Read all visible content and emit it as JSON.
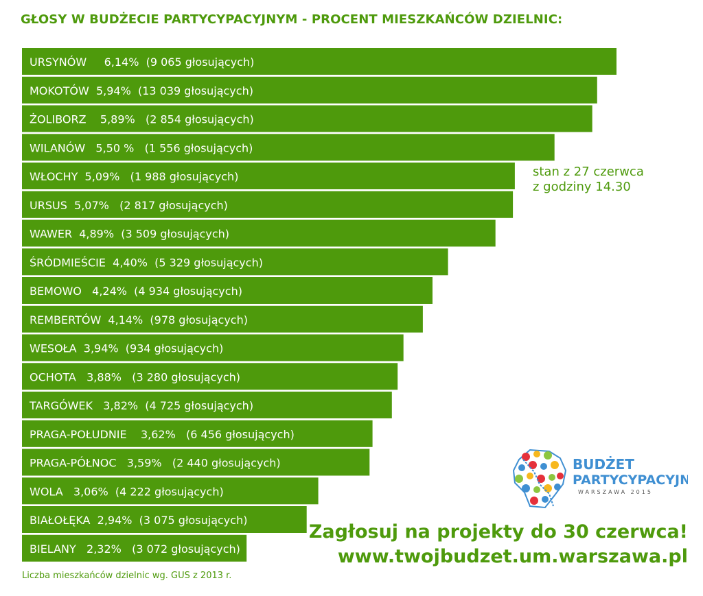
{
  "chart_data": {
    "type": "bar",
    "orientation": "horizontal",
    "title": "GŁOSY W BUDŻECIE PARTYCYPACYJNYM - PROCENT MIESZKAŃCÓW DZIELNIC:",
    "bars": [
      {
        "label": "URSYNÓW     6,14%  (9 065 głosujących)",
        "value": 6.14
      },
      {
        "label": "MOKOTÓW  5,94%  (13 039 głosujących)",
        "value": 5.94
      },
      {
        "label": "ŻOLIBORZ    5,89%   (2 854 głosujących)",
        "value": 5.89
      },
      {
        "label": "WILANÓW   5,50 %   (1 556 głosujących)",
        "value": 5.5
      },
      {
        "label": "WŁOCHY  5,09%   (1 988 głosujących)",
        "value": 5.09
      },
      {
        "label": "URSUS  5,07%   (2 817 głosujących)",
        "value": 5.07
      },
      {
        "label": "WAWER  4,89%  (3 509 głosujących)",
        "value": 4.89
      },
      {
        "label": "ŚRÓDMIEŚCIE  4,40%  (5 329 głosujących)",
        "value": 4.4
      },
      {
        "label": "BEMOWO   4,24%  (4 934 głosujących)",
        "value": 4.24
      },
      {
        "label": "REMBERTÓW  4,14%  (978 głosujących)",
        "value": 4.14
      },
      {
        "label": "WESOŁA  3,94%  (934 głosujących)",
        "value": 3.94
      },
      {
        "label": "OCHOTA   3,88%   (3 280 głosujących)",
        "value": 3.88
      },
      {
        "label": "TARGÓWEK   3,82%  (4 725 głosujących)",
        "value": 3.82
      },
      {
        "label": "PRAGA-POŁUDNIE    3,62%   (6 456 głosujących)",
        "value": 3.62
      },
      {
        "label": "PRAGA-PÓŁNOC   3,59%   (2 440 głosujących)",
        "value": 3.59
      },
      {
        "label": "WOLA   3,06%  (4 222 głosujących)",
        "value": 3.06
      },
      {
        "label": "BIAŁOŁĘKA  2,94%  (3 075 głosujących)",
        "value": 2.94
      },
      {
        "label": "BIELANY   2,32%   (3 072 głosujących)",
        "value": 2.32
      }
    ]
  },
  "note": [
    "stan z 27 czerwca",
    "z godziny 14.30"
  ],
  "source": "Liczba mieszkańców dzielnic wg. GUS z 2013 r.",
  "cta": {
    "line1": "Zagłosuj na projekty do 30 czerwca!",
    "line2": "www.twojbudzet.um.warszawa.pl"
  },
  "logo": {
    "word1": "BUDŻET",
    "word2": "PARTYCYPACYJNY",
    "word3": "WARSZAWA 2015"
  },
  "colors": {
    "bar": "#4e9a0c",
    "bar_text": "#ffffff",
    "accent_text": "#4e9a0c",
    "logo_blue": "#3f8fd2"
  }
}
